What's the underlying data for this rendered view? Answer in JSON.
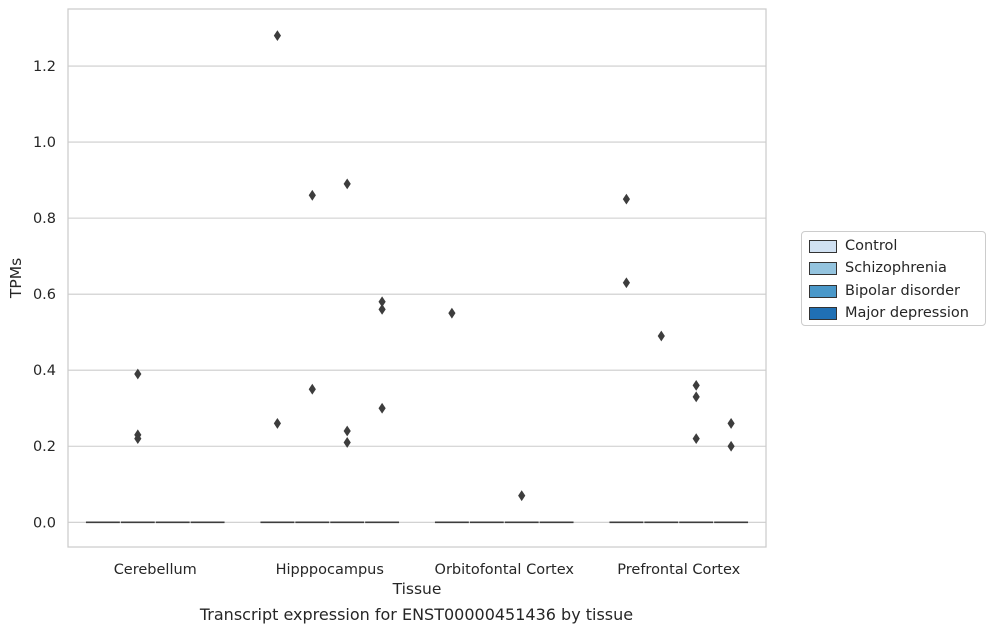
{
  "chart_data": {
    "type": "box",
    "title": "",
    "caption": "Transcript expression for ENST00000451436 by tissue",
    "xlabel": "Tissue",
    "ylabel": "TPMs",
    "categories": [
      "Cerebellum",
      "Hipppocampus",
      "Orbitofontal Cortex",
      "Prefrontal Cortex"
    ],
    "ylim": [
      -0.065,
      1.35
    ],
    "yticks": [
      0.0,
      0.2,
      0.4,
      0.6,
      0.8,
      1.0,
      1.2
    ],
    "ytick_labels": [
      "0.0",
      "0.2",
      "0.4",
      "0.6",
      "0.8",
      "1.0",
      "1.2"
    ],
    "grid": true,
    "legend_position": "outside-right",
    "series": [
      {
        "name": "Control",
        "color": "#d0e1f2",
        "outliers": [
          [],
          [
            1.28,
            0.26
          ],
          [
            0.55
          ],
          [
            0.85,
            0.63
          ]
        ]
      },
      {
        "name": "Schizophrenia",
        "color": "#94c4df",
        "outliers": [
          [
            0.39,
            0.23,
            0.22
          ],
          [
            0.86,
            0.35
          ],
          [],
          [
            0.49
          ]
        ]
      },
      {
        "name": "Bipolar disorder",
        "color": "#4a98c9",
        "outliers": [
          [],
          [
            0.89,
            0.24,
            0.21
          ],
          [
            0.07
          ],
          [
            0.36,
            0.33,
            0.22
          ]
        ]
      },
      {
        "name": "Major depression",
        "color": "#2070b4",
        "outliers": [
          [],
          [
            0.58,
            0.56,
            0.3
          ],
          [],
          [
            0.26,
            0.2
          ]
        ]
      }
    ],
    "medians": [
      [
        0,
        0,
        0,
        0
      ],
      [
        0,
        0,
        0,
        0
      ],
      [
        0,
        0,
        0,
        0
      ],
      [
        0,
        0,
        0,
        0
      ]
    ]
  }
}
